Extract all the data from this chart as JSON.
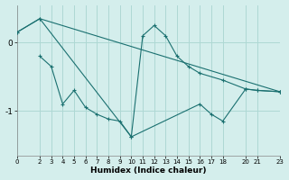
{
  "xlabel": "Humidex (Indice chaleur)",
  "bg_color": "#d4eeec",
  "grid_color": "#aed8d4",
  "line_color": "#1a7070",
  "xlim": [
    0,
    23
  ],
  "ylim": [
    -1.65,
    0.55
  ],
  "yticks": [
    0,
    -1
  ],
  "xticks": [
    0,
    2,
    3,
    4,
    5,
    6,
    7,
    8,
    9,
    10,
    11,
    12,
    13,
    14,
    15,
    16,
    17,
    18,
    20,
    21,
    23
  ],
  "series": [
    {
      "comment": "top line: starts high ~0.15, peak at x=2 ~0.35, drops to x=10 ~-1.38, rises x=11~0.1, x=12~0.25, x=13~0.1, x=14~-0.2, x=15~-0.35, x=16~-0.45, x=18~-0.55, x=20~-0.68, x=21~-0.7, x=23~-0.72",
      "x": [
        0,
        2,
        10,
        11,
        12,
        13,
        14,
        15,
        16,
        18,
        20,
        21,
        23
      ],
      "y": [
        0.15,
        0.35,
        -1.38,
        0.1,
        0.25,
        0.1,
        -0.2,
        -0.35,
        -0.45,
        -0.55,
        -0.68,
        -0.7,
        -0.72
      ],
      "style": "-",
      "marker": "+"
    },
    {
      "comment": "lower solid: starts x=2 ~-0.2, x=3 ~-0.35, x=4 ~-0.9, x=5 ~-0.7, x=6 ~-0.95, x=7 ~-1.05, x=8 ~-1.12, x=9 ~-1.15, x=10 ~-1.38, x=16 ~-0.9, x=17 ~-1.05, x=18 ~-1.15, x=20 ~-0.68, x=21 ~-0.70, x=23 ~-0.72",
      "x": [
        2,
        3,
        4,
        5,
        6,
        7,
        8,
        9,
        10,
        16,
        17,
        18,
        20,
        21,
        23
      ],
      "y": [
        -0.2,
        -0.35,
        -0.9,
        -0.7,
        -0.95,
        -1.05,
        -1.12,
        -1.15,
        -1.38,
        -0.9,
        -1.05,
        -1.15,
        -0.68,
        -0.7,
        -0.72
      ],
      "style": "-",
      "marker": "+"
    },
    {
      "x": [
        0,
        2,
        23
      ],
      "y": [
        0.15,
        0.35,
        -0.72
      ],
      "style": "-",
      "marker": "+"
    }
  ]
}
